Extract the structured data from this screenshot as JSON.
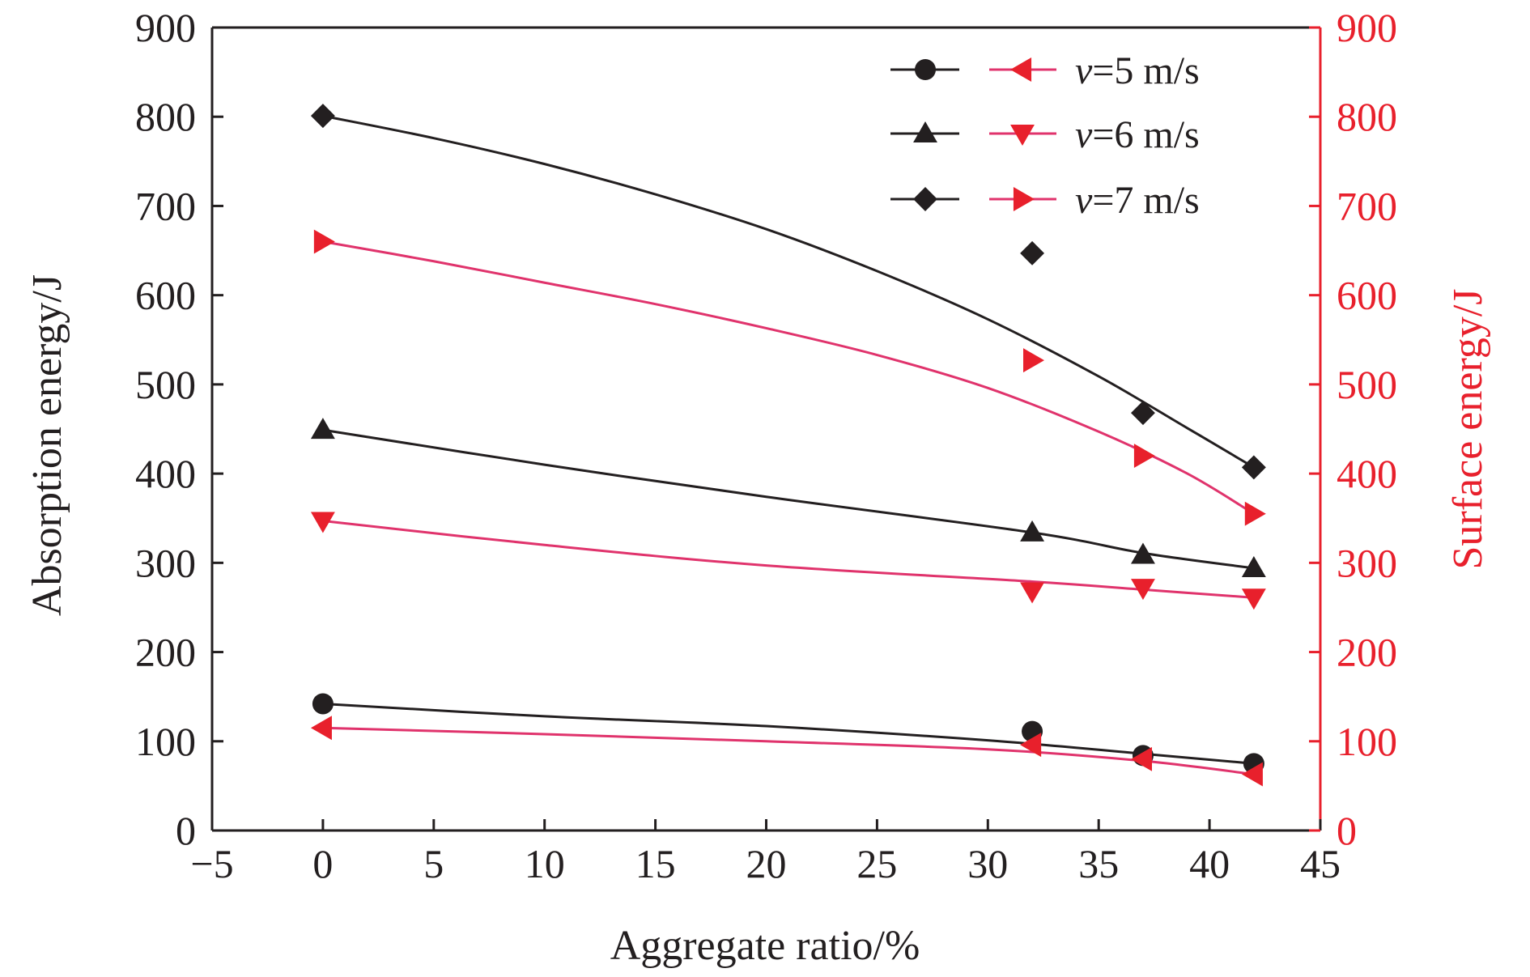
{
  "chart_data": {
    "type": "line",
    "xlabel": "Aggregate ratio/%",
    "ylabel_left": "Absorption energy/J",
    "ylabel_right": "Surface energy/J",
    "xlim": [
      -5,
      45
    ],
    "xticks": [
      -5,
      0,
      5,
      10,
      15,
      20,
      25,
      30,
      35,
      40,
      45
    ],
    "xtick_labels": [
      "−5",
      "0",
      "5",
      "10",
      "15",
      "20",
      "25",
      "30",
      "35",
      "40",
      "45"
    ],
    "ylim_left": [
      0,
      900
    ],
    "ylim_right": [
      0,
      900
    ],
    "yticks": [
      0,
      100,
      200,
      300,
      400,
      500,
      600,
      700,
      800,
      900
    ],
    "ytick_labels": [
      "0",
      "100",
      "200",
      "300",
      "400",
      "500",
      "600",
      "700",
      "800",
      "900"
    ],
    "grid": false,
    "legend_position": "top-right",
    "legend": [
      {
        "label_v": "v",
        "label_rest": "=5 m/s",
        "absorption_marker": "circle",
        "surface_marker": "triangle-left"
      },
      {
        "label_v": "v",
        "label_rest": "=6 m/s",
        "absorption_marker": "triangle-up",
        "surface_marker": "triangle-down"
      },
      {
        "label_v": "v",
        "label_rest": "=7 m/s",
        "absorption_marker": "diamond",
        "surface_marker": "triangle-right"
      }
    ],
    "colors": {
      "absorption": "#231f20",
      "surface": "#e8202c",
      "surface_line": "#e0336c",
      "right_axis": "#e8202c"
    },
    "series": [
      {
        "axis": "left",
        "group": "absorption",
        "speed": "5",
        "marker": "circle",
        "points": [
          [
            0,
            142
          ],
          [
            32,
            111
          ],
          [
            37,
            84
          ],
          [
            42,
            75
          ]
        ],
        "fit": [
          [
            0,
            142
          ],
          [
            10,
            128
          ],
          [
            20,
            117
          ],
          [
            30,
            101
          ],
          [
            37,
            86
          ],
          [
            42,
            75
          ]
        ]
      },
      {
        "axis": "left",
        "group": "absorption",
        "speed": "6",
        "marker": "triangle-up",
        "points": [
          [
            0,
            449
          ],
          [
            32,
            334
          ],
          [
            37,
            309
          ],
          [
            42,
            294
          ]
        ],
        "fit": [
          [
            0,
            449
          ],
          [
            10,
            410
          ],
          [
            20,
            374
          ],
          [
            32,
            334
          ],
          [
            37,
            311
          ],
          [
            42,
            294
          ]
        ]
      },
      {
        "axis": "left",
        "group": "absorption",
        "speed": "7",
        "marker": "diamond",
        "points": [
          [
            0,
            801
          ],
          [
            32,
            647
          ],
          [
            37,
            468
          ],
          [
            42,
            407
          ]
        ],
        "fit": [
          [
            0,
            801
          ],
          [
            5,
            776
          ],
          [
            10,
            747
          ],
          [
            15,
            713
          ],
          [
            20,
            674
          ],
          [
            25,
            627
          ],
          [
            30,
            573
          ],
          [
            35,
            509
          ],
          [
            39,
            451
          ],
          [
            42,
            407
          ]
        ]
      },
      {
        "axis": "right",
        "group": "surface",
        "speed": "5",
        "marker": "triangle-left",
        "points": [
          [
            0,
            115
          ],
          [
            32,
            96
          ],
          [
            37,
            80
          ],
          [
            42,
            63
          ]
        ],
        "fit": [
          [
            0,
            115
          ],
          [
            10,
            108
          ],
          [
            20,
            100
          ],
          [
            30,
            91
          ],
          [
            37,
            78
          ],
          [
            42,
            63
          ]
        ]
      },
      {
        "axis": "right",
        "group": "surface",
        "speed": "6",
        "marker": "triangle-down",
        "points": [
          [
            0,
            347
          ],
          [
            32,
            268
          ],
          [
            37,
            272
          ],
          [
            42,
            261
          ]
        ],
        "fit": [
          [
            0,
            347
          ],
          [
            10,
            320
          ],
          [
            20,
            297
          ],
          [
            32,
            279
          ],
          [
            37,
            270
          ],
          [
            42,
            261
          ]
        ]
      },
      {
        "axis": "right",
        "group": "surface",
        "speed": "7",
        "marker": "triangle-right",
        "points": [
          [
            0,
            660
          ],
          [
            32,
            527
          ],
          [
            37,
            420
          ],
          [
            42,
            355
          ]
        ],
        "fit": [
          [
            0,
            660
          ],
          [
            5,
            638
          ],
          [
            10,
            614
          ],
          [
            15,
            590
          ],
          [
            20,
            563
          ],
          [
            25,
            533
          ],
          [
            30,
            496
          ],
          [
            35,
            447
          ],
          [
            39,
            400
          ],
          [
            42,
            355
          ]
        ]
      }
    ]
  }
}
